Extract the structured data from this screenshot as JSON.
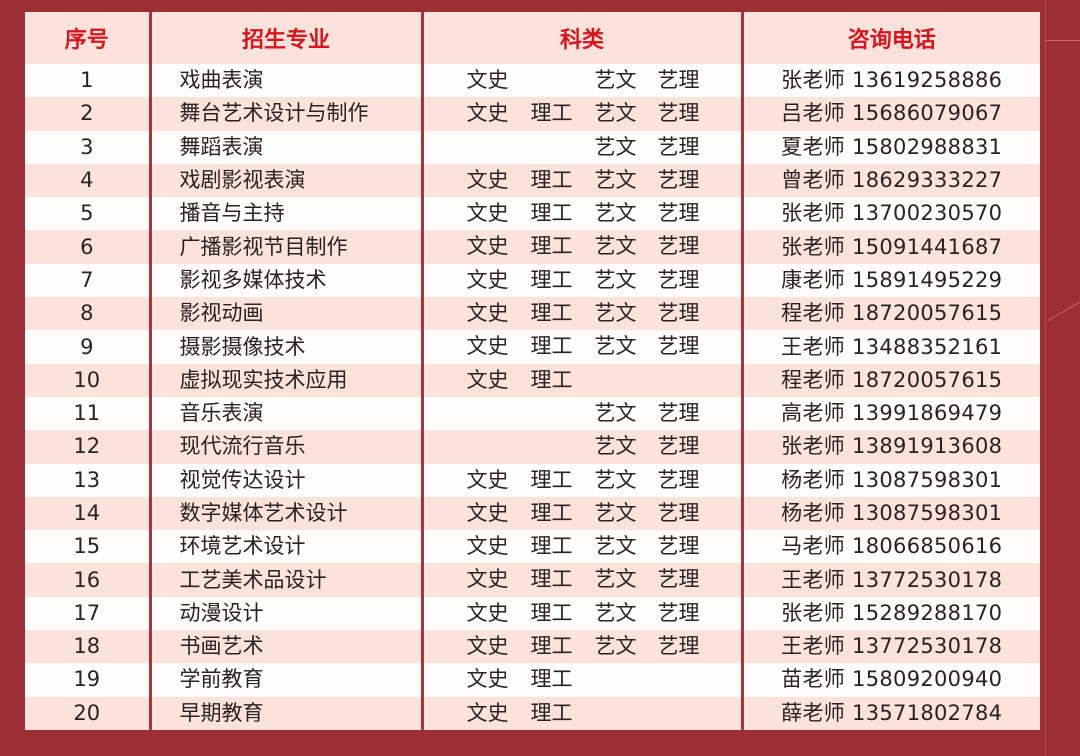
{
  "colors": {
    "background": "#9c2f36",
    "header_bg": "#fbe2db",
    "header_text": "#d8141e",
    "row_alt": "#fbe2da"
  },
  "headers": {
    "seq": "序号",
    "major": "招生专业",
    "category": "科类",
    "contact": "咨询电话"
  },
  "rows": [
    {
      "seq": "1",
      "major": "戏曲表演",
      "cats": [
        "文史",
        "",
        "艺文",
        "艺理"
      ],
      "contact": "张老师 13619258886"
    },
    {
      "seq": "2",
      "major": "舞台艺术设计与制作",
      "cats": [
        "文史",
        "理工",
        "艺文",
        "艺理"
      ],
      "contact": "吕老师 15686079067"
    },
    {
      "seq": "3",
      "major": "舞蹈表演",
      "cats": [
        "",
        "",
        "艺文",
        "艺理"
      ],
      "contact": "夏老师 15802988831"
    },
    {
      "seq": "4",
      "major": "戏剧影视表演",
      "cats": [
        "文史",
        "理工",
        "艺文",
        "艺理"
      ],
      "contact": "曾老师 18629333227"
    },
    {
      "seq": "5",
      "major": "播音与主持",
      "cats": [
        "文史",
        "理工",
        "艺文",
        "艺理"
      ],
      "contact": "张老师 13700230570"
    },
    {
      "seq": "6",
      "major": "广播影视节目制作",
      "cats": [
        "文史",
        "理工",
        "艺文",
        "艺理"
      ],
      "contact": "张老师 15091441687"
    },
    {
      "seq": "7",
      "major": "影视多媒体技术",
      "cats": [
        "文史",
        "理工",
        "艺文",
        "艺理"
      ],
      "contact": "康老师 15891495229"
    },
    {
      "seq": "8",
      "major": "影视动画",
      "cats": [
        "文史",
        "理工",
        "艺文",
        "艺理"
      ],
      "contact": "程老师 18720057615"
    },
    {
      "seq": "9",
      "major": "摄影摄像技术",
      "cats": [
        "文史",
        "理工",
        "艺文",
        "艺理"
      ],
      "contact": "王老师 13488352161"
    },
    {
      "seq": "10",
      "major": "虚拟现实技术应用",
      "cats": [
        "文史",
        "理工",
        "",
        ""
      ],
      "contact": "程老师 18720057615"
    },
    {
      "seq": "11",
      "major": "音乐表演",
      "cats": [
        "",
        "",
        "艺文",
        "艺理"
      ],
      "contact": "高老师 13991869479"
    },
    {
      "seq": "12",
      "major": "现代流行音乐",
      "cats": [
        "",
        "",
        "艺文",
        "艺理"
      ],
      "contact": "张老师 13891913608"
    },
    {
      "seq": "13",
      "major": "视觉传达设计",
      "cats": [
        "文史",
        "理工",
        "艺文",
        "艺理"
      ],
      "contact": "杨老师 13087598301"
    },
    {
      "seq": "14",
      "major": "数字媒体艺术设计",
      "cats": [
        "文史",
        "理工",
        "艺文",
        "艺理"
      ],
      "contact": "杨老师 13087598301"
    },
    {
      "seq": "15",
      "major": "环境艺术设计",
      "cats": [
        "文史",
        "理工",
        "艺文",
        "艺理"
      ],
      "contact": "马老师 18066850616"
    },
    {
      "seq": "16",
      "major": "工艺美术品设计",
      "cats": [
        "文史",
        "理工",
        "艺文",
        "艺理"
      ],
      "contact": "王老师 13772530178"
    },
    {
      "seq": "17",
      "major": "动漫设计",
      "cats": [
        "文史",
        "理工",
        "艺文",
        "艺理"
      ],
      "contact": "张老师 15289288170"
    },
    {
      "seq": "18",
      "major": "书画艺术",
      "cats": [
        "文史",
        "理工",
        "艺文",
        "艺理"
      ],
      "contact": "王老师 13772530178"
    },
    {
      "seq": "19",
      "major": "学前教育",
      "cats": [
        "文史",
        "理工",
        "",
        ""
      ],
      "contact": "苗老师 15809200940"
    },
    {
      "seq": "20",
      "major": "早期教育",
      "cats": [
        "文史",
        "理工",
        "",
        ""
      ],
      "contact": "薛老师 13571802784"
    }
  ]
}
